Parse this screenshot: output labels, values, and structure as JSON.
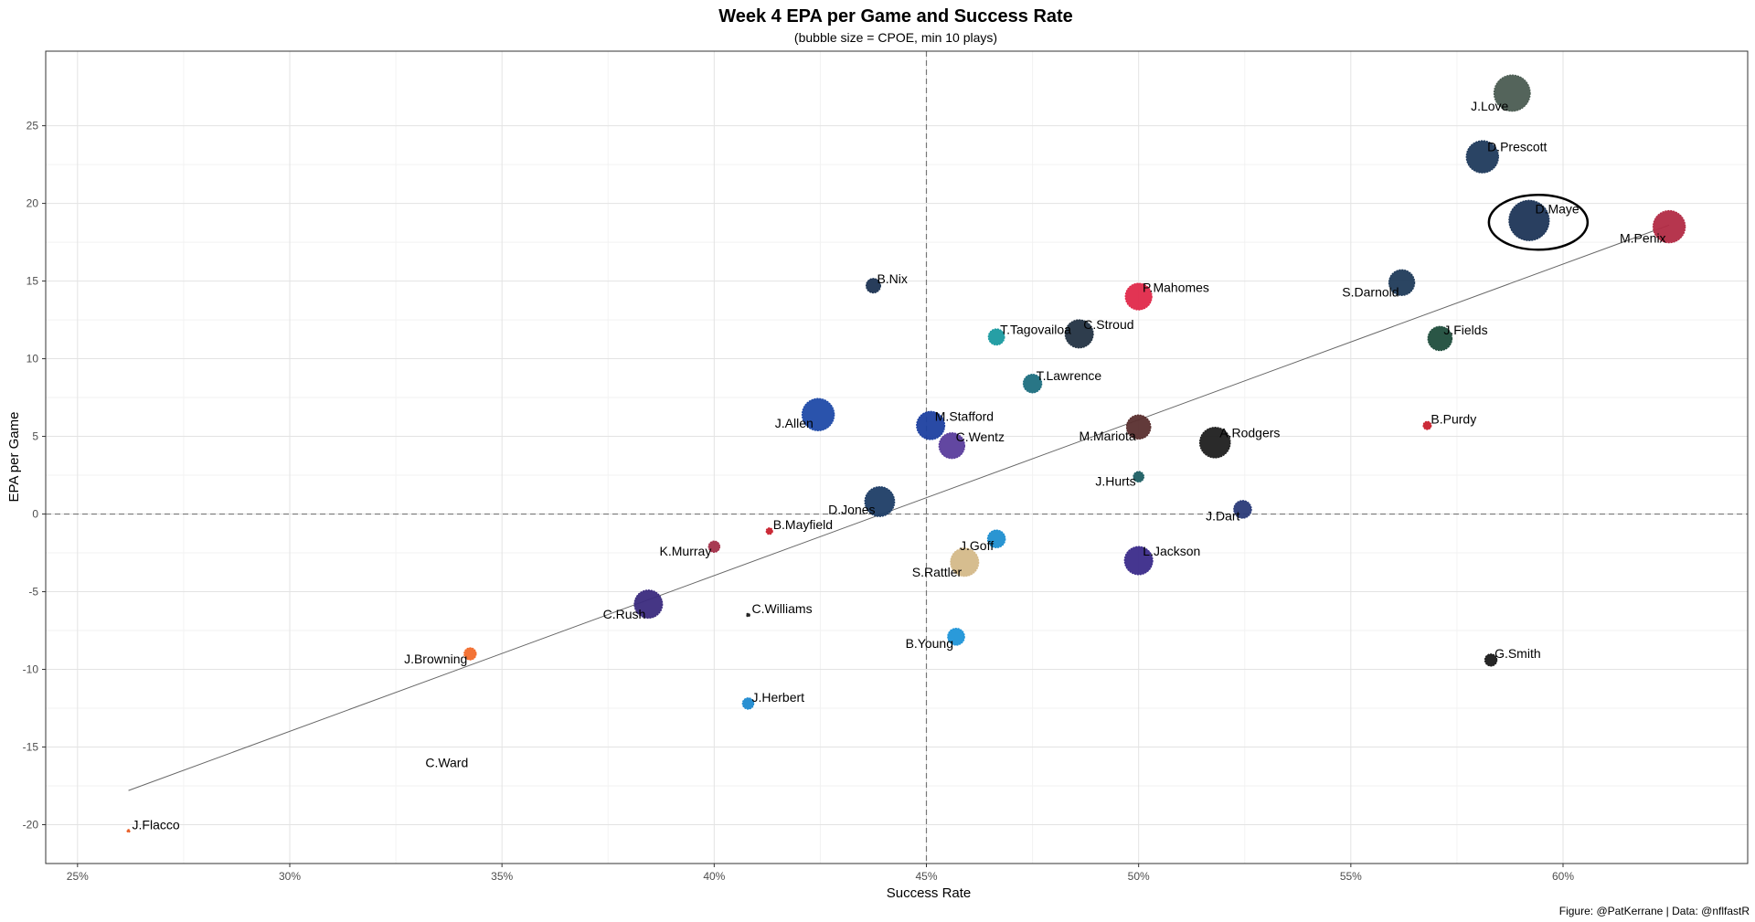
{
  "chart_data": {
    "type": "scatter",
    "title": "Week 4 EPA per Game and Success Rate",
    "subtitle": "(bubble size = CPOE, min 10 plays)",
    "xlabel": "Success Rate",
    "ylabel": "EPA per Game",
    "caption": "Figure: @PatKerrane | Data: @nflfastR",
    "xlim": [
      0.2425,
      0.6435
    ],
    "ylim": [
      -22.5,
      29.8
    ],
    "x_ticks": [
      0.25,
      0.3,
      0.35,
      0.4,
      0.45,
      0.5,
      0.55,
      0.6
    ],
    "x_tick_labels": [
      "25%",
      "30%",
      "35%",
      "40%",
      "45%",
      "50%",
      "55%",
      "60%"
    ],
    "y_ticks": [
      -20,
      -15,
      -10,
      -5,
      0,
      5,
      10,
      15,
      20,
      25
    ],
    "y_tick_labels": [
      "-20",
      "-15",
      "-10",
      "-5",
      "0",
      "5",
      "10",
      "15",
      "20",
      "25"
    ],
    "reference_lines": {
      "x": 0.45,
      "y": 0
    },
    "trend_line": {
      "x1": 0.262,
      "y1": -17.8,
      "x2": 0.625,
      "y2": 18.6
    },
    "highlight": "D.Maye",
    "points": [
      {
        "name": "J.Love",
        "x": 0.588,
        "y": 27.1,
        "size": 4.5,
        "color": "#4b5c52",
        "label_pos": "bottom-left"
      },
      {
        "name": "D.Prescott",
        "x": 0.581,
        "y": 23.0,
        "size": 4.0,
        "color": "#1f3a5c",
        "label_pos": "right"
      },
      {
        "name": "D.Maye",
        "x": 0.592,
        "y": 18.9,
        "size": 5.0,
        "color": "#1d3557",
        "label_pos": "right"
      },
      {
        "name": "M.Penix",
        "x": 0.625,
        "y": 18.5,
        "size": 4.0,
        "color": "#b22b45",
        "label_pos": "bottom-left"
      },
      {
        "name": "S.Darnold",
        "x": 0.562,
        "y": 14.9,
        "size": 3.2,
        "color": "#203b5a",
        "label_pos": "bottom-left"
      },
      {
        "name": "J.Fields",
        "x": 0.571,
        "y": 11.3,
        "size": 3.0,
        "color": "#1f4d3c",
        "label_pos": "right"
      },
      {
        "name": "B.Purdy",
        "x": 0.568,
        "y": 5.7,
        "size": 1.0,
        "color": "#c8202d",
        "label_pos": "right"
      },
      {
        "name": "B.Nix",
        "x": 0.4375,
        "y": 14.7,
        "size": 1.8,
        "color": "#1c3352",
        "label_pos": "right"
      },
      {
        "name": "P.Mahomes",
        "x": 0.5,
        "y": 14.0,
        "size": 3.3,
        "color": "#e0294a",
        "label_pos": "right"
      },
      {
        "name": "T.Tagovailoa",
        "x": 0.4665,
        "y": 11.4,
        "size": 2.0,
        "color": "#1a9aa0",
        "label_pos": "right"
      },
      {
        "name": "C.Stroud",
        "x": 0.486,
        "y": 11.6,
        "size": 3.5,
        "color": "#233343",
        "label_pos": "right"
      },
      {
        "name": "T.Lawrence",
        "x": 0.475,
        "y": 8.4,
        "size": 2.3,
        "color": "#1e6f80",
        "label_pos": "right"
      },
      {
        "name": "J.Allen",
        "x": 0.4245,
        "y": 6.4,
        "size": 4.0,
        "color": "#1f4aa8",
        "label_pos": "left"
      },
      {
        "name": "M.Stafford",
        "x": 0.451,
        "y": 5.7,
        "size": 3.5,
        "color": "#1e40a0",
        "label_pos": "right"
      },
      {
        "name": "C.Wentz",
        "x": 0.456,
        "y": 4.4,
        "size": 3.2,
        "color": "#5a3d9c",
        "label_pos": "right"
      },
      {
        "name": "M.Mariota",
        "x": 0.5,
        "y": 5.6,
        "size": 3.0,
        "color": "#5a2f2f",
        "label_pos": "bottom-left"
      },
      {
        "name": "A.Rodgers",
        "x": 0.518,
        "y": 4.6,
        "size": 3.8,
        "color": "#1f1f1f",
        "label_pos": "right"
      },
      {
        "name": "J.Hurts",
        "x": 0.5,
        "y": 2.4,
        "size": 1.3,
        "color": "#1e5e63",
        "label_pos": "bottom-left"
      },
      {
        "name": "J.Dart",
        "x": 0.5245,
        "y": 0.3,
        "size": 2.2,
        "color": "#2a3a78",
        "label_pos": "bottom-left"
      },
      {
        "name": "D.Jones",
        "x": 0.439,
        "y": 0.8,
        "size": 3.7,
        "color": "#1e3d66",
        "label_pos": "left"
      },
      {
        "name": "B.Mayfield",
        "x": 0.413,
        "y": -1.1,
        "size": 0.8,
        "color": "#c8202d",
        "label_pos": "right"
      },
      {
        "name": "K.Murray",
        "x": 0.4,
        "y": -2.1,
        "size": 1.4,
        "color": "#a3304a",
        "label_pos": "bottom-left"
      },
      {
        "name": "J.Goff",
        "x": 0.4665,
        "y": -1.6,
        "size": 2.2,
        "color": "#1f8fd0",
        "label_pos": "bottom-left"
      },
      {
        "name": "S.Rattler",
        "x": 0.459,
        "y": -3.1,
        "size": 3.5,
        "color": "#d4b989",
        "label_pos": "bottom-left"
      },
      {
        "name": "L.Jackson",
        "x": 0.5,
        "y": -3.0,
        "size": 3.5,
        "color": "#3b2b8a",
        "label_pos": "right"
      },
      {
        "name": "C.Rush",
        "x": 0.3845,
        "y": -5.8,
        "size": 3.5,
        "color": "#3b2b7e",
        "label_pos": "bottom-left"
      },
      {
        "name": "C.Williams",
        "x": 0.408,
        "y": -6.5,
        "size": 0.4,
        "color": "#1a1a1a",
        "label_pos": "right"
      },
      {
        "name": "B.Young",
        "x": 0.457,
        "y": -7.9,
        "size": 2.1,
        "color": "#1f95d8",
        "label_pos": "bottom-left"
      },
      {
        "name": "J.Browning",
        "x": 0.3425,
        "y": -9.0,
        "size": 1.5,
        "color": "#f26b2b",
        "label_pos": "bottom-left"
      },
      {
        "name": "J.Herbert",
        "x": 0.408,
        "y": -12.2,
        "size": 1.4,
        "color": "#1f8ad0",
        "label_pos": "right"
      },
      {
        "name": "G.Smith",
        "x": 0.583,
        "y": -9.4,
        "size": 1.5,
        "color": "#1a1a1a",
        "label_pos": "right"
      },
      {
        "name": "C.Ward",
        "x": 0.337,
        "y": -16.0,
        "size": 0.0,
        "color": "#333333",
        "label_pos": "center"
      },
      {
        "name": "J.Flacco",
        "x": 0.262,
        "y": -20.4,
        "size": 0.2,
        "color": "#e8571c",
        "label_pos": "right"
      }
    ]
  }
}
